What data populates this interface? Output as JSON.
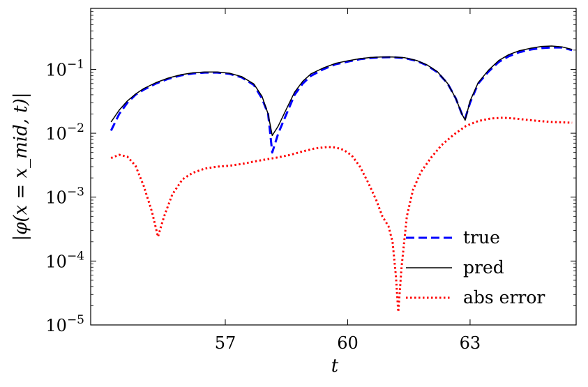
{
  "chart_data": {
    "type": "line",
    "xlabel": "t",
    "ylabel": "|φ(x = x_mid, t)|",
    "yscale": "log",
    "xlim": [
      53.7,
      65.6
    ],
    "ylim": [
      1e-05,
      0.9
    ],
    "xticks": [
      {
        "value": 57,
        "label": "57"
      },
      {
        "value": 60,
        "label": "60"
      },
      {
        "value": 63,
        "label": "63"
      }
    ],
    "yticks": [
      {
        "value": 0.1,
        "base": "10",
        "exp": "−1"
      },
      {
        "value": 0.01,
        "base": "10",
        "exp": "−2"
      },
      {
        "value": 0.001,
        "base": "10",
        "exp": "−3"
      },
      {
        "value": 0.0001,
        "base": "10",
        "exp": "−4"
      },
      {
        "value": 1e-05,
        "base": "10",
        "exp": "−5"
      }
    ],
    "grid": false,
    "legend_position": "lower-right",
    "series": [
      {
        "name": "true",
        "color": "#0000ff",
        "style": "dashed",
        "points": [
          [
            54.2,
            0.011
          ],
          [
            54.4,
            0.02
          ],
          [
            54.6,
            0.03
          ],
          [
            54.8,
            0.04
          ],
          [
            55.0,
            0.048
          ],
          [
            55.3,
            0.06
          ],
          [
            55.6,
            0.071
          ],
          [
            55.9,
            0.08
          ],
          [
            56.2,
            0.086
          ],
          [
            56.5,
            0.089
          ],
          [
            56.8,
            0.089
          ],
          [
            57.1,
            0.085
          ],
          [
            57.4,
            0.075
          ],
          [
            57.7,
            0.057
          ],
          [
            57.9,
            0.035
          ],
          [
            58.05,
            0.02
          ],
          [
            58.15,
            0.005
          ],
          [
            58.3,
            0.01
          ],
          [
            58.5,
            0.02
          ],
          [
            58.7,
            0.04
          ],
          [
            58.9,
            0.06
          ],
          [
            59.1,
            0.079
          ],
          [
            59.4,
            0.1
          ],
          [
            59.7,
            0.12
          ],
          [
            60.0,
            0.132
          ],
          [
            60.3,
            0.144
          ],
          [
            60.55,
            0.15
          ],
          [
            60.8,
            0.154
          ],
          [
            61.1,
            0.155
          ],
          [
            61.4,
            0.15
          ],
          [
            61.7,
            0.135
          ],
          [
            61.95,
            0.115
          ],
          [
            62.2,
            0.09
          ],
          [
            62.45,
            0.06
          ],
          [
            62.65,
            0.035
          ],
          [
            62.8,
            0.02
          ],
          [
            62.88,
            0.017
          ],
          [
            63.0,
            0.03
          ],
          [
            63.2,
            0.06
          ],
          [
            63.45,
            0.092
          ],
          [
            63.7,
            0.13
          ],
          [
            63.95,
            0.16
          ],
          [
            64.2,
            0.185
          ],
          [
            64.5,
            0.205
          ],
          [
            64.75,
            0.215
          ],
          [
            65.0,
            0.22
          ],
          [
            65.25,
            0.22
          ],
          [
            65.5,
            0.2
          ]
        ]
      },
      {
        "name": "pred",
        "color": "#000000",
        "style": "solid",
        "points": [
          [
            54.2,
            0.015
          ],
          [
            54.4,
            0.023
          ],
          [
            54.6,
            0.032
          ],
          [
            54.8,
            0.041
          ],
          [
            55.0,
            0.05
          ],
          [
            55.3,
            0.062
          ],
          [
            55.6,
            0.073
          ],
          [
            55.9,
            0.082
          ],
          [
            56.2,
            0.088
          ],
          [
            56.5,
            0.091
          ],
          [
            56.8,
            0.091
          ],
          [
            57.1,
            0.087
          ],
          [
            57.4,
            0.077
          ],
          [
            57.7,
            0.059
          ],
          [
            57.9,
            0.038
          ],
          [
            58.05,
            0.02
          ],
          [
            58.15,
            0.0092
          ],
          [
            58.3,
            0.013
          ],
          [
            58.5,
            0.024
          ],
          [
            58.7,
            0.044
          ],
          [
            58.9,
            0.065
          ],
          [
            59.1,
            0.085
          ],
          [
            59.4,
            0.105
          ],
          [
            59.7,
            0.124
          ],
          [
            60.0,
            0.136
          ],
          [
            60.3,
            0.147
          ],
          [
            60.55,
            0.153
          ],
          [
            60.8,
            0.156
          ],
          [
            61.1,
            0.156
          ],
          [
            61.4,
            0.152
          ],
          [
            61.7,
            0.137
          ],
          [
            61.95,
            0.117
          ],
          [
            62.2,
            0.092
          ],
          [
            62.45,
            0.06
          ],
          [
            62.65,
            0.035
          ],
          [
            62.8,
            0.02
          ],
          [
            62.88,
            0.016
          ],
          [
            63.0,
            0.032
          ],
          [
            63.2,
            0.062
          ],
          [
            63.45,
            0.097
          ],
          [
            63.7,
            0.137
          ],
          [
            63.95,
            0.17
          ],
          [
            64.2,
            0.195
          ],
          [
            64.5,
            0.215
          ],
          [
            64.75,
            0.228
          ],
          [
            65.0,
            0.232
          ],
          [
            65.25,
            0.225
          ],
          [
            65.5,
            0.205
          ]
        ]
      },
      {
        "name": "abs error",
        "color": "#ff0000",
        "style": "dotted",
        "points": [
          [
            54.2,
            0.0041
          ],
          [
            54.4,
            0.0046
          ],
          [
            54.6,
            0.0043
          ],
          [
            54.8,
            0.0031
          ],
          [
            55.0,
            0.0015
          ],
          [
            55.2,
            0.0006
          ],
          [
            55.35,
            0.00024
          ],
          [
            55.5,
            0.0005
          ],
          [
            55.7,
            0.0011
          ],
          [
            55.95,
            0.0019
          ],
          [
            56.2,
            0.0024
          ],
          [
            56.5,
            0.0028
          ],
          [
            56.8,
            0.003
          ],
          [
            57.1,
            0.0031
          ],
          [
            57.4,
            0.0033
          ],
          [
            57.7,
            0.0036
          ],
          [
            58.0,
            0.0039
          ],
          [
            58.3,
            0.0042
          ],
          [
            58.6,
            0.0046
          ],
          [
            58.9,
            0.0052
          ],
          [
            59.2,
            0.0058
          ],
          [
            59.5,
            0.0061
          ],
          [
            59.7,
            0.006
          ],
          [
            59.9,
            0.0055
          ],
          [
            60.1,
            0.0045
          ],
          [
            60.3,
            0.003
          ],
          [
            60.5,
            0.0017
          ],
          [
            60.7,
            0.0009
          ],
          [
            60.85,
            0.0005
          ],
          [
            61.0,
            0.00035
          ],
          [
            61.1,
            0.0002
          ],
          [
            61.18,
            6e-05
          ],
          [
            61.24,
            1.6e-05
          ],
          [
            61.32,
            8e-05
          ],
          [
            61.45,
            0.0005
          ],
          [
            61.6,
            0.0013
          ],
          [
            61.8,
            0.0025
          ],
          [
            62.05,
            0.0042
          ],
          [
            62.3,
            0.0065
          ],
          [
            62.6,
            0.0095
          ],
          [
            62.9,
            0.013
          ],
          [
            63.2,
            0.0155
          ],
          [
            63.5,
            0.017
          ],
          [
            63.8,
            0.0175
          ],
          [
            64.1,
            0.017
          ],
          [
            64.4,
            0.0162
          ],
          [
            64.7,
            0.0155
          ],
          [
            65.0,
            0.015
          ],
          [
            65.3,
            0.0148
          ],
          [
            65.5,
            0.0146
          ]
        ]
      }
    ]
  }
}
